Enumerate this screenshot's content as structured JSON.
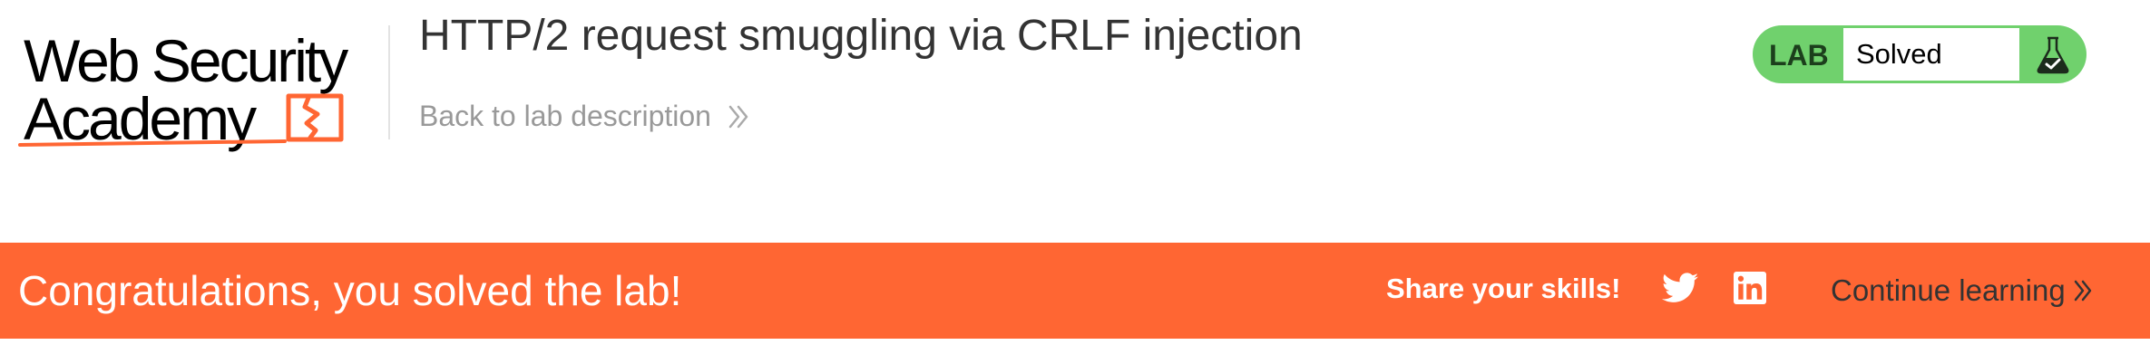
{
  "header": {
    "logo": {
      "line1": "Web Security",
      "line2": "Academy",
      "accent_color": "#ff6633"
    },
    "lab_title": "HTTP/2 request smuggling via CRLF injection",
    "back_link_label": "Back to lab description",
    "back_link_icon": "double-chevron-right-icon"
  },
  "lab_status": {
    "badge_label": "LAB",
    "status_text": "Solved",
    "badge_color": "#70d16d",
    "icon": "flask-check-icon"
  },
  "banner": {
    "message": "Congratulations, you solved the lab!",
    "background_color": "#ff6633",
    "share_label": "Share your skills!",
    "share_icons": [
      "twitter-icon",
      "linkedin-icon"
    ],
    "continue_label": "Continue learning"
  }
}
